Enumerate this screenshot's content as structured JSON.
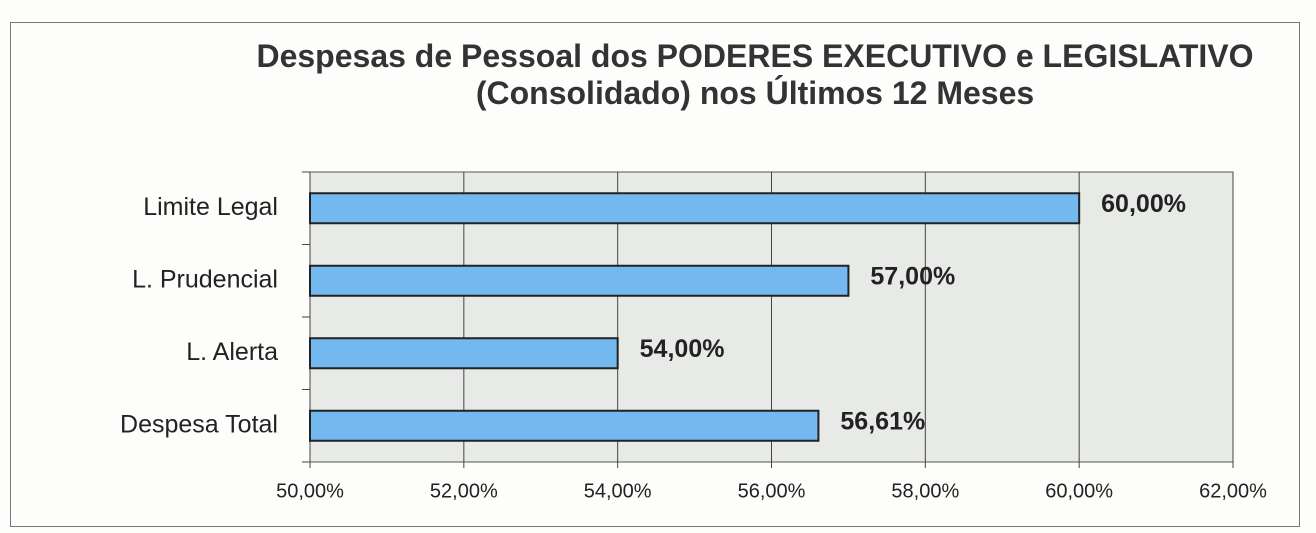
{
  "chart_data": {
    "type": "bar",
    "orientation": "horizontal",
    "title": "Despesas de Pessoal dos PODERES EXECUTIVO e LEGISLATIVO (Consolidado) nos Últimos 12 Meses",
    "categories": [
      "Limite Legal",
      "L. Prudencial",
      "L. Alerta",
      "Despesa Total"
    ],
    "values": [
      60,
      57,
      54,
      56.61
    ],
    "value_labels": [
      "60,00%",
      "57,00%",
      "54,00%",
      "56,61%"
    ],
    "color": "#74b8f0",
    "xlim": [
      50,
      62
    ],
    "xticks": [
      {
        "value": 50,
        "label": "50,00%"
      },
      {
        "value": 52,
        "label": "52,00%"
      },
      {
        "value": 54,
        "label": "54,00%"
      },
      {
        "value": 56,
        "label": "56,00%"
      },
      {
        "value": 58,
        "label": "58,00%"
      },
      {
        "value": 60,
        "label": "60,00%"
      },
      {
        "value": 62,
        "label": "62,00%"
      }
    ],
    "grid": true
  }
}
